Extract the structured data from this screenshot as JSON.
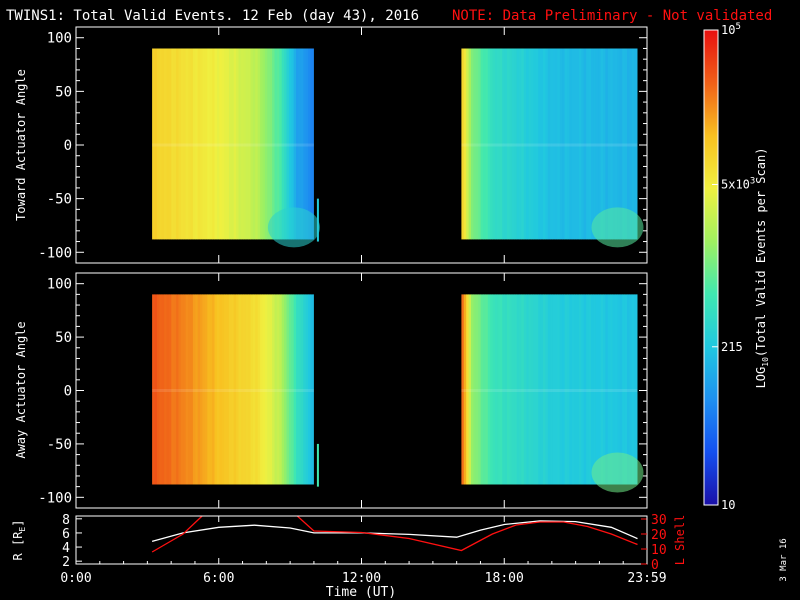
{
  "header": {
    "title": "TWINS1: Total Valid Events. 12 Feb (day  43), 2016",
    "note": "NOTE: Data Preliminary - Not validated"
  },
  "stamp": "3 Mar 16",
  "colors": {
    "background": "#000000",
    "axis": "#ffffff",
    "note": "#ff1010",
    "lshell_line": "#ff1010",
    "r_line": "#ffffff",
    "colorscale": [
      "#1a10a8",
      "#1450f0",
      "#1e90f0",
      "#20c8e0",
      "#40e8b0",
      "#a0f060",
      "#f0f040",
      "#f8c020",
      "#f06018",
      "#e81010"
    ]
  },
  "chart_data": [
    {
      "type": "heatmap",
      "panel": "toward",
      "ylabel": "Toward Actuator Angle",
      "ylim": [
        -110,
        110
      ],
      "yticks": [
        -100,
        -50,
        0,
        50,
        100
      ],
      "xlim_hours": [
        0,
        24
      ],
      "blocks": [
        {
          "start_hours": 3.2,
          "end_hours": 10.0,
          "angle_range": [
            -88,
            90
          ]
        },
        {
          "start_hours": 16.2,
          "end_hours": 23.6,
          "angle_range": [
            -88,
            90
          ]
        }
      ],
      "events_profile": [
        {
          "hour": 3.2,
          "events": 9000
        },
        {
          "hour": 4.5,
          "events": 6500
        },
        {
          "hour": 6.0,
          "events": 4500
        },
        {
          "hour": 7.5,
          "events": 2500
        },
        {
          "hour": 8.5,
          "events": 700
        },
        {
          "hour": 9.2,
          "events": 120
        },
        {
          "hour": 10.0,
          "events": 60
        },
        {
          "hour": 16.2,
          "events": 8000
        },
        {
          "hour": 16.6,
          "events": 1200
        },
        {
          "hour": 17.5,
          "events": 400
        },
        {
          "hour": 20.0,
          "events": 180
        },
        {
          "hour": 23.6,
          "events": 150
        }
      ]
    },
    {
      "type": "heatmap",
      "panel": "away",
      "ylabel": "Away Actuator Angle",
      "ylim": [
        -110,
        110
      ],
      "yticks": [
        -100,
        -50,
        0,
        50,
        100
      ],
      "xlim_hours": [
        0,
        24
      ],
      "blocks": [
        {
          "start_hours": 3.2,
          "end_hours": 10.0,
          "angle_range": [
            -88,
            90
          ]
        },
        {
          "start_hours": 16.2,
          "end_hours": 23.6,
          "angle_range": [
            -88,
            90
          ]
        }
      ],
      "events_profile": [
        {
          "hour": 3.2,
          "events": 40000
        },
        {
          "hour": 4.5,
          "events": 25000
        },
        {
          "hour": 6.0,
          "events": 12000
        },
        {
          "hour": 7.5,
          "events": 7000
        },
        {
          "hour": 8.5,
          "events": 2500
        },
        {
          "hour": 9.2,
          "events": 500
        },
        {
          "hour": 10.0,
          "events": 150
        },
        {
          "hour": 16.2,
          "events": 30000
        },
        {
          "hour": 16.6,
          "events": 1500
        },
        {
          "hour": 17.5,
          "events": 500
        },
        {
          "hour": 20.0,
          "events": 250
        },
        {
          "hour": 23.6,
          "events": 200
        }
      ]
    },
    {
      "type": "line",
      "panel": "ephemeris",
      "xlabel": "Time (UT)",
      "xlim_hours": [
        0,
        24
      ],
      "xtick_hours": [
        0,
        6,
        12,
        18,
        24
      ],
      "xtick_labels": [
        "0:00",
        "6:00",
        "12:00",
        "18:00",
        "23:59"
      ],
      "left_axis": {
        "label": "R [Rₑ]",
        "label_main": "R [R",
        "label_sub": "E",
        "label_close": "]",
        "ylim": [
          1.6,
          8.4
        ],
        "ticks": [
          2,
          4,
          6,
          8
        ]
      },
      "right_axis": {
        "label": "L Shell",
        "ylim": [
          0,
          32
        ],
        "ticks": [
          0,
          10,
          20,
          30
        ]
      },
      "series": [
        {
          "axis": "left",
          "x": [
            3.2,
            4.5,
            6,
            7.5,
            9,
            10,
            12,
            14,
            16,
            17,
            18,
            19.5,
            21,
            22.5,
            23.6
          ],
          "y": [
            4.8,
            6.0,
            6.8,
            7.1,
            6.7,
            6.0,
            6.0,
            5.8,
            5.4,
            6.4,
            7.2,
            7.7,
            7.6,
            6.8,
            5.2
          ]
        },
        {
          "axis": "right",
          "x": [
            3.2,
            4.5,
            5.3,
            6,
            9.3,
            10,
            12,
            14,
            16.2,
            17.5,
            18.5,
            19.5,
            20.5,
            21.5,
            22.5,
            23.6
          ],
          "y": [
            8,
            20,
            32,
            45,
            32,
            22,
            21,
            17,
            9,
            20,
            26,
            28,
            28,
            25,
            20,
            13
          ]
        }
      ]
    },
    {
      "type": "colorbar",
      "label_main": "LOG",
      "label_sub": "10",
      "label_rest": "(Total Valid Events per Scan)",
      "scale": "log",
      "range": [
        10,
        100000
      ],
      "ticks": [
        {
          "value": 10,
          "label": "10",
          "sup": ""
        },
        {
          "value": 215,
          "label": "215",
          "sup": ""
        },
        {
          "value": 5000,
          "label": "5x10",
          "sup": "3"
        },
        {
          "value": 100000,
          "label": "10",
          "sup": "5"
        }
      ]
    }
  ]
}
